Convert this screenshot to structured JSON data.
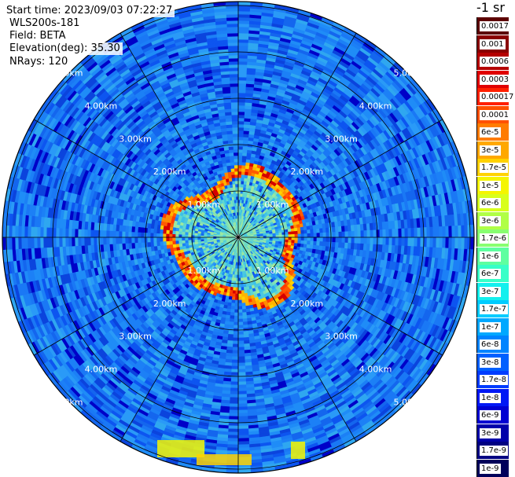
{
  "info": {
    "start_time": "Start time: 2023/09/03 07:22:27",
    "instrument": "WLS200s-181",
    "field": "Field: BETA",
    "elevation": "Elevation(deg): 35.30",
    "nrays": "NRays: 120"
  },
  "range_rings": {
    "labels": [
      "1.00km",
      "2.00km",
      "3.00km",
      "4.00km",
      "5.00km"
    ],
    "max_range_km": 5.0
  },
  "colorbar": {
    "title": "-1 sr",
    "labels": [
      "0.0017",
      "0.001",
      "0.0006",
      "0.0003",
      "0.00017",
      "0.0001",
      "6e-5",
      "3e-5",
      "1.7e-5",
      "1e-5",
      "6e-6",
      "3e-6",
      "1.7e-6",
      "1e-6",
      "6e-7",
      "3e-7",
      "1.7e-7",
      "1e-7",
      "6e-8",
      "3e-8",
      "1.7e-8",
      "1e-8",
      "6e-9",
      "3e-9",
      "1.7e-9",
      "1e-9"
    ],
    "colors": [
      "#5c0000",
      "#8a0000",
      "#b50000",
      "#e00000",
      "#ff2000",
      "#ff5000",
      "#ff7c00",
      "#ffa800",
      "#ffd200",
      "#f5f500",
      "#d8ff1c",
      "#b0ff46",
      "#88ff70",
      "#5effa0",
      "#38ffc8",
      "#14f0ee",
      "#00ccff",
      "#00a8ff",
      "#0084ff",
      "#0060ff",
      "#003cff",
      "#0018f5",
      "#0000d2",
      "#0000aa",
      "#000082",
      "#00005a"
    ]
  }
}
